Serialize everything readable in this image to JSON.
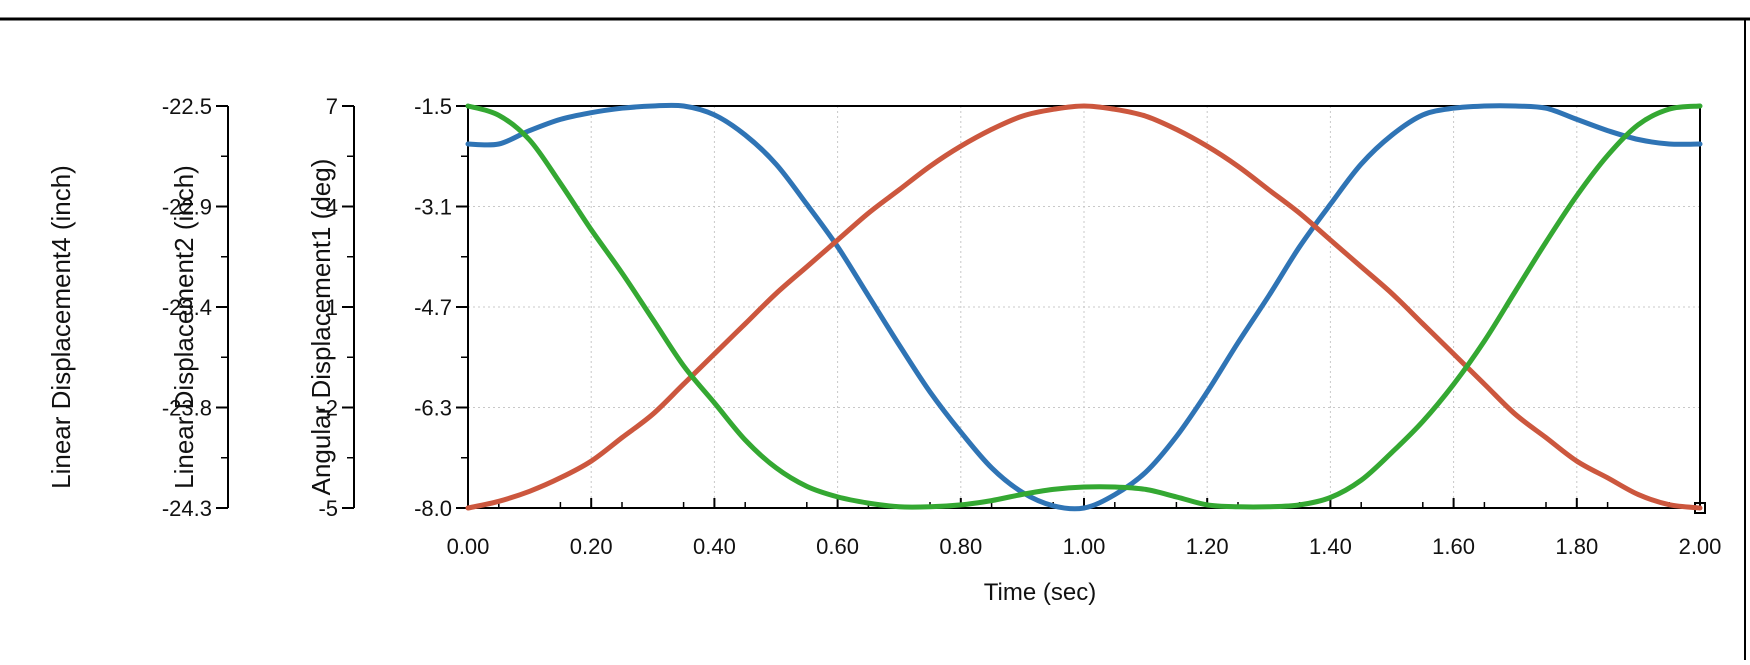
{
  "chart_data": {
    "type": "line",
    "xlabel": "Time (sec)",
    "x_ticks": [
      "0.00",
      "0.20",
      "0.40",
      "0.60",
      "0.80",
      "1.00",
      "1.20",
      "1.40",
      "1.60",
      "1.80",
      "2.00"
    ],
    "xlim": [
      0,
      2
    ],
    "grid": true,
    "legend": "none",
    "y_axes": [
      {
        "label": "Linear Displacement4 (inch)",
        "ticks": [
          "-22.5",
          "-22.9",
          "-23.4",
          "-23.8",
          "-24.3"
        ],
        "ylim": [
          -24.3,
          -22.5
        ]
      },
      {
        "label": "Linear Displacement2 (inch)",
        "ticks": [
          "7",
          "4",
          "1",
          "-2",
          "-5"
        ],
        "ylim": [
          -5,
          7
        ]
      },
      {
        "label": "Angular Displacement1 (deg)",
        "ticks": [
          "-1.5",
          "-3.1",
          "-4.7",
          "-6.3",
          "-8.0"
        ],
        "ylim": [
          -8.0,
          -1.5
        ]
      }
    ],
    "series": [
      {
        "axis": 0,
        "color": "#2f74b5",
        "x": [
          0,
          0.05,
          0.1,
          0.15,
          0.2,
          0.25,
          0.3,
          0.35,
          0.4,
          0.45,
          0.5,
          0.55,
          0.6,
          0.65,
          0.7,
          0.75,
          0.8,
          0.85,
          0.9,
          0.95,
          1.0,
          1.05,
          1.1,
          1.15,
          1.2,
          1.25,
          1.3,
          1.35,
          1.4,
          1.45,
          1.5,
          1.55,
          1.6,
          1.65,
          1.7,
          1.75,
          1.8,
          1.85,
          1.9,
          1.95,
          2.0
        ],
        "y": [
          -22.67,
          -22.67,
          -22.61,
          -22.56,
          -22.53,
          -22.51,
          -22.5,
          -22.5,
          -22.54,
          -22.63,
          -22.76,
          -22.94,
          -23.13,
          -23.35,
          -23.57,
          -23.78,
          -23.96,
          -24.12,
          -24.23,
          -24.29,
          -24.3,
          -24.24,
          -24.14,
          -23.98,
          -23.78,
          -23.56,
          -23.35,
          -23.13,
          -22.94,
          -22.76,
          -22.63,
          -22.54,
          -22.51,
          -22.5,
          -22.5,
          -22.51,
          -22.56,
          -22.61,
          -22.65,
          -22.67,
          -22.67
        ]
      },
      {
        "axis": 1,
        "color": "#cc573e",
        "x": [
          0,
          0.05,
          0.1,
          0.15,
          0.2,
          0.25,
          0.3,
          0.35,
          0.4,
          0.45,
          0.5,
          0.55,
          0.6,
          0.65,
          0.7,
          0.75,
          0.8,
          0.85,
          0.9,
          0.95,
          1.0,
          1.05,
          1.1,
          1.15,
          1.2,
          1.25,
          1.3,
          1.35,
          1.4,
          1.45,
          1.5,
          1.55,
          1.6,
          1.65,
          1.7,
          1.75,
          1.8,
          1.85,
          1.9,
          1.95,
          2.0
        ],
        "y": [
          -5.0,
          -4.8,
          -4.5,
          -4.1,
          -3.6,
          -2.9,
          -2.2,
          -1.3,
          -0.4,
          0.5,
          1.4,
          2.2,
          3.0,
          3.8,
          4.5,
          5.2,
          5.8,
          6.3,
          6.7,
          6.9,
          7.0,
          6.9,
          6.7,
          6.3,
          5.8,
          5.2,
          4.5,
          3.8,
          3.0,
          2.2,
          1.4,
          0.5,
          -0.4,
          -1.3,
          -2.2,
          -2.9,
          -3.6,
          -4.1,
          -4.6,
          -4.9,
          -5.0
        ]
      },
      {
        "axis": 2,
        "color": "#34a832",
        "x": [
          0,
          0.05,
          0.1,
          0.15,
          0.2,
          0.25,
          0.3,
          0.35,
          0.4,
          0.45,
          0.5,
          0.55,
          0.6,
          0.65,
          0.7,
          0.75,
          0.8,
          0.85,
          0.9,
          0.95,
          1.0,
          1.05,
          1.1,
          1.15,
          1.2,
          1.25,
          1.3,
          1.35,
          1.4,
          1.45,
          1.5,
          1.55,
          1.6,
          1.65,
          1.7,
          1.75,
          1.8,
          1.85,
          1.9,
          1.95,
          2.0
        ],
        "y": [
          -1.5,
          -1.65,
          -2.05,
          -2.75,
          -3.5,
          -4.2,
          -4.95,
          -5.7,
          -6.3,
          -6.9,
          -7.35,
          -7.65,
          -7.82,
          -7.92,
          -7.98,
          -7.98,
          -7.95,
          -7.88,
          -7.78,
          -7.7,
          -7.66,
          -7.66,
          -7.7,
          -7.82,
          -7.95,
          -7.98,
          -7.98,
          -7.95,
          -7.83,
          -7.55,
          -7.1,
          -6.6,
          -6.0,
          -5.3,
          -4.5,
          -3.7,
          -2.95,
          -2.3,
          -1.8,
          -1.55,
          -1.5
        ]
      }
    ]
  }
}
